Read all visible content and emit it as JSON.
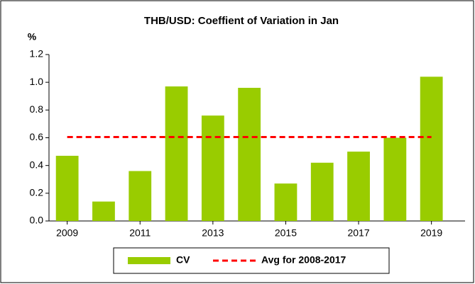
{
  "chart_data": {
    "type": "bar",
    "title": "THB/USD: Coeffient of Variation in Jan",
    "y_label": "%",
    "categories": [
      "2009",
      null,
      "2011",
      null,
      "2013",
      null,
      "2015",
      null,
      "2017",
      null,
      "2019"
    ],
    "series": [
      {
        "name": "CV",
        "type": "bar",
        "color": "#99cc00",
        "values": [
          0.47,
          0.14,
          0.36,
          0.97,
          0.76,
          0.96,
          0.27,
          0.42,
          0.5,
          0.6,
          1.04
        ]
      },
      {
        "name": "Avg for 2008-2017",
        "type": "line",
        "color": "#ff0000",
        "values": [
          0.605,
          0.605,
          0.605,
          0.605,
          0.605,
          0.605,
          0.605,
          0.605,
          0.605,
          0.605,
          0.605
        ]
      }
    ],
    "ylim": [
      0,
      1.2
    ],
    "yticks": [
      {
        "value": 0,
        "label": "0.0"
      },
      0.2,
      0.4,
      0.6,
      0.8,
      {
        "value": 1,
        "label": "1.0"
      },
      1.2
    ],
    "legend": "bottom"
  }
}
